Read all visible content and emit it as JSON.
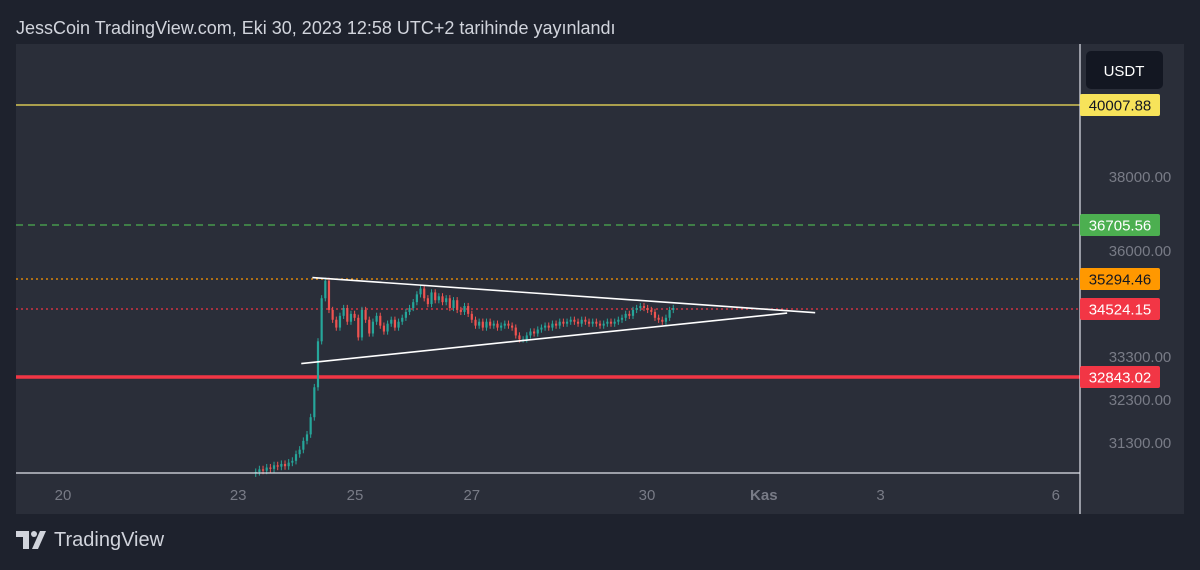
{
  "header": {
    "title": "JessCoin TradingView.com, Eki 30, 2023 12:58 UTC+2 tarihinde yayınlandı"
  },
  "footer": {
    "brand": "TradingView",
    "logo_icon": "tradingview-logo-icon"
  },
  "colors": {
    "background": "#2a2e39",
    "page_background": "#1e222d",
    "candle_up": "#26a69a",
    "candle_down": "#ef5350",
    "text": "#d1d4dc",
    "axis_text": "#787b86",
    "yellow": "#f7e35a",
    "green": "#4caf50",
    "orange": "#ff9800",
    "red": "#f23645",
    "white": "#ffffff"
  },
  "chart_data": {
    "type": "candlestick",
    "currency": "USDT",
    "ylim": [
      30650,
      41100
    ],
    "y_scale": "non-linear",
    "y_ticks": [
      {
        "label": "38000.00",
        "value": 38000
      },
      {
        "label": "36000.00",
        "value": 36000
      },
      {
        "label": "33300.00",
        "value": 33300
      },
      {
        "label": "32300.00",
        "value": 32300
      },
      {
        "label": "31300.00",
        "value": 31300
      }
    ],
    "y_scale_anchors": [
      [
        30650,
        472
      ],
      [
        31300,
        443
      ],
      [
        32300,
        400
      ],
      [
        32843.02,
        377
      ],
      [
        33300,
        357
      ],
      [
        34524.15,
        309
      ],
      [
        35294.46,
        279
      ],
      [
        36000,
        251
      ],
      [
        36705.56,
        225
      ],
      [
        38000,
        177
      ],
      [
        40007.88,
        105
      ],
      [
        41100,
        44
      ]
    ],
    "x_ticks": [
      {
        "label": "20",
        "day": 0,
        "bold": false
      },
      {
        "label": "23",
        "day": 3,
        "bold": false
      },
      {
        "label": "25",
        "day": 5,
        "bold": false
      },
      {
        "label": "27",
        "day": 7,
        "bold": false
      },
      {
        "label": "30",
        "day": 10,
        "bold": false
      },
      {
        "label": "Kas",
        "day": 12,
        "bold": true
      },
      {
        "label": "3",
        "day": 14,
        "bold": false
      },
      {
        "label": "6",
        "day": 17,
        "bold": false
      }
    ],
    "price_levels": [
      {
        "label": "40007.88",
        "value": 40007.88,
        "color": "#f7e35a",
        "style": "solid",
        "text_color": "#131722"
      },
      {
        "label": "36705.56",
        "value": 36705.56,
        "color": "#4caf50",
        "style": "dashed",
        "text_color": "#ffffff"
      },
      {
        "label": "35294.46",
        "value": 35294.46,
        "color": "#ff9800",
        "style": "dotted",
        "text_color": "#131722"
      },
      {
        "label": "34524.15",
        "value": 34524.15,
        "color": "#f23645",
        "style": "dotted",
        "text_color": "#ffffff"
      },
      {
        "label": "32843.02",
        "value": 32843.02,
        "color": "#f23645",
        "style": "solid-thick",
        "text_color": "#ffffff"
      }
    ],
    "trendlines": [
      {
        "name": "triangle-upper",
        "points": [
          [
            4.27,
            35330
          ],
          [
            12.88,
            34430
          ]
        ]
      },
      {
        "name": "triangle-lower",
        "points": [
          [
            4.08,
            33150
          ],
          [
            12.4,
            34420
          ]
        ]
      }
    ],
    "candle_day_start": 3.3,
    "candle_day_end": 10.45,
    "candle_closes": [
      30650,
      30710,
      30680,
      30750,
      30720,
      30800,
      30770,
      30830,
      30780,
      30860,
      30900,
      31050,
      31150,
      31350,
      31500,
      31900,
      32600,
      33700,
      34800,
      35250,
      34500,
      34250,
      34050,
      34350,
      34550,
      34200,
      34400,
      34300,
      33800,
      34500,
      34250,
      33900,
      34200,
      34350,
      34100,
      33950,
      34150,
      34250,
      34050,
      34200,
      34300,
      34450,
      34550,
      34700,
      34900,
      35050,
      34800,
      34650,
      34950,
      34750,
      34850,
      34700,
      34800,
      34550,
      34750,
      34500,
      34450,
      34600,
      34400,
      34250,
      34100,
      34200,
      34050,
      34200,
      34100,
      34150,
      34050,
      34100,
      34150,
      34100,
      34050,
      33850,
      33750,
      33750,
      33850,
      33950,
      33900,
      34000,
      34050,
      34100,
      34050,
      34150,
      34100,
      34200,
      34150,
      34200,
      34250,
      34200,
      34150,
      34250,
      34200,
      34150,
      34200,
      34150,
      34100,
      34150,
      34200,
      34150,
      34200,
      34250,
      34300,
      34400,
      34350,
      34500,
      34550,
      34600,
      34550,
      34500,
      34450,
      34300,
      34250,
      34200,
      34300,
      34500,
      34550
    ]
  }
}
